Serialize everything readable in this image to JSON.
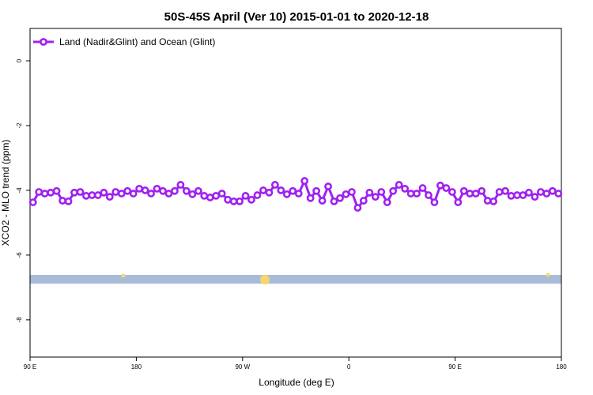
{
  "chart_data": {
    "type": "line",
    "title": "50S-45S April (Ver 10)   2015-01-01 to 2020-12-18",
    "x_label": "Longitude (deg E)",
    "y_label": "XCO2 - MLO trend (ppm)",
    "xlim": [
      90,
      540
    ],
    "xticks": [
      {
        "value": 90,
        "label": "90 E"
      },
      180,
      {
        "value": 270,
        "label": "90 W"
      },
      {
        "value": 360,
        "label": "0"
      },
      {
        "value": 450,
        "label": "90 E"
      },
      {
        "value": 540,
        "label": "180"
      }
    ],
    "ylim": [
      -9.15,
      1.0
    ],
    "yticks": [
      0,
      -2,
      -4,
      -6,
      -8
    ],
    "legend": "top-left",
    "x": [
      92.5,
      97.5,
      102.5,
      107.5,
      112.5,
      117.5,
      122.5,
      127.5,
      132.5,
      137.5,
      142.5,
      147.5,
      152.5,
      157.5,
      162.5,
      167.5,
      172.5,
      177.5,
      182.5,
      187.5,
      192.5,
      197.5,
      202.5,
      207.5,
      212.5,
      217.5,
      222.5,
      227.5,
      232.5,
      237.5,
      242.5,
      247.5,
      252.5,
      257.5,
      262.5,
      267.5,
      272.5,
      277.5,
      282.5,
      287.5,
      292.5,
      297.5,
      302.5,
      307.5,
      312.5,
      317.5,
      322.5,
      327.5,
      332.5,
      337.5,
      342.5,
      347.5,
      352.5,
      357.5,
      362.5,
      367.5,
      372.5,
      377.5,
      382.5,
      387.5,
      392.5,
      397.5,
      402.5,
      407.5,
      412.5,
      417.5,
      422.5,
      427.5,
      432.5,
      437.5,
      442.5,
      447.5,
      452.5,
      457.5,
      462.5,
      467.5,
      472.5,
      477.5,
      482.5,
      487.5,
      492.5,
      497.5,
      502.5,
      507.5,
      512.5,
      517.5,
      522.5,
      527.5,
      532.5,
      537.5
    ],
    "series": [
      {
        "name": "Land (Nadir&Glint) and Ocean (Glint)",
        "color": "#a020f0",
        "values": [
          -4.37,
          -4.05,
          -4.1,
          -4.07,
          -4.02,
          -4.32,
          -4.34,
          -4.07,
          -4.05,
          -4.17,
          -4.15,
          -4.15,
          -4.07,
          -4.2,
          -4.05,
          -4.1,
          -4.02,
          -4.1,
          -3.95,
          -4.0,
          -4.1,
          -3.95,
          -4.02,
          -4.1,
          -4.02,
          -3.83,
          -4.02,
          -4.12,
          -4.02,
          -4.17,
          -4.22,
          -4.17,
          -4.1,
          -4.29,
          -4.34,
          -4.34,
          -4.17,
          -4.29,
          -4.15,
          -4.0,
          -4.07,
          -3.83,
          -4.0,
          -4.12,
          -4.02,
          -4.1,
          -3.71,
          -4.24,
          -4.02,
          -4.32,
          -3.88,
          -4.34,
          -4.24,
          -4.12,
          -4.05,
          -4.54,
          -4.32,
          -4.07,
          -4.2,
          -4.05,
          -4.37,
          -4.02,
          -3.83,
          -3.95,
          -4.1,
          -4.1,
          -3.93,
          -4.15,
          -4.37,
          -3.85,
          -3.93,
          -4.05,
          -4.37,
          -4.02,
          -4.1,
          -4.1,
          -4.02,
          -4.32,
          -4.34,
          -4.05,
          -4.02,
          -4.17,
          -4.15,
          -4.15,
          -4.07,
          -4.2,
          -4.05,
          -4.1,
          -4.02,
          -4.1
        ]
      }
    ]
  }
}
